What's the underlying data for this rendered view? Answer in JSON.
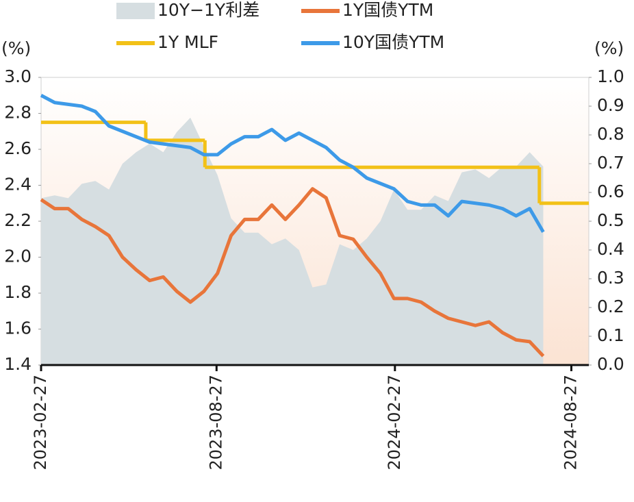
{
  "chart_data": {
    "type": "line",
    "y_unit": "(%)",
    "y2_unit": "(%)",
    "xlim": [
      "2023-02-27",
      "2024-09-14"
    ],
    "xticks": [
      "2023-02-27",
      "2023-08-27",
      "2024-02-27",
      "2024-08-27"
    ],
    "ylim": [
      1.4,
      3.0
    ],
    "yticks": [
      {
        "value": 1.4,
        "label": "1.4"
      },
      1.6,
      1.8,
      {
        "value": 2,
        "label": "2.0"
      },
      2.2,
      2.4,
      2.6,
      2.8,
      {
        "value": 3,
        "label": "3.0"
      }
    ],
    "y2lim": [
      0,
      1
    ],
    "y2ticks": [
      {
        "value": 0,
        "label": "0.0"
      },
      0.1,
      0.2,
      0.3,
      0.4,
      0.5,
      0.6,
      0.7,
      0.8,
      0.9,
      {
        "value": 1,
        "label": "1.0"
      }
    ],
    "x": [
      "2023-02-27",
      "2023-03-13",
      "2023-03-27",
      "2023-04-10",
      "2023-04-24",
      "2023-05-08",
      "2023-05-22",
      "2023-06-05",
      "2023-06-19",
      "2023-07-03",
      "2023-07-17",
      "2023-07-31",
      "2023-08-14",
      "2023-08-28",
      "2023-09-11",
      "2023-09-25",
      "2023-10-09",
      "2023-10-23",
      "2023-11-06",
      "2023-11-20",
      "2023-12-04",
      "2023-12-18",
      "2024-01-01",
      "2024-01-15",
      "2024-01-29",
      "2024-02-12",
      "2024-02-26",
      "2024-03-11",
      "2024-03-25",
      "2024-04-08",
      "2024-04-22",
      "2024-05-06",
      "2024-05-20",
      "2024-06-03",
      "2024-06-17",
      "2024-07-01",
      "2024-07-15",
      "2024-07-29"
    ],
    "series": [
      {
        "name": "10Y−1Y利差",
        "color": "#d6dee1",
        "kind": "area",
        "axis": "y2",
        "values": [
          0.58,
          0.59,
          0.58,
          0.63,
          0.64,
          0.61,
          0.7,
          0.74,
          0.77,
          0.74,
          0.81,
          0.86,
          0.76,
          0.66,
          0.51,
          0.46,
          0.46,
          0.42,
          0.44,
          0.4,
          0.27,
          0.28,
          0.42,
          0.4,
          0.44,
          0.5,
          0.61,
          0.54,
          0.54,
          0.59,
          0.57,
          0.67,
          0.68,
          0.65,
          0.69,
          0.69,
          0.74,
          0.69
        ]
      },
      {
        "name": "1Y国债YTM",
        "color": "#e8753a",
        "kind": "line",
        "values": [
          2.32,
          2.27,
          2.27,
          2.21,
          2.17,
          2.12,
          2.0,
          1.93,
          1.87,
          1.89,
          1.81,
          1.75,
          1.81,
          1.91,
          2.12,
          2.21,
          2.21,
          2.29,
          2.21,
          2.29,
          2.38,
          2.33,
          2.12,
          2.1,
          2.0,
          1.91,
          1.77,
          1.77,
          1.75,
          1.7,
          1.66,
          1.64,
          1.62,
          1.64,
          1.58,
          1.54,
          1.53,
          1.45
        ]
      },
      {
        "name": "1Y MLF",
        "color": "#f2c118",
        "kind": "step",
        "x": [
          "2023-02-27",
          "2023-06-15",
          "2023-08-15",
          "2024-07-25"
        ],
        "values": [
          2.75,
          2.65,
          2.5,
          2.3
        ]
      },
      {
        "name": "10Y国债YTM",
        "color": "#3d9ae8",
        "kind": "line",
        "values": [
          2.9,
          2.86,
          2.85,
          2.84,
          2.81,
          2.73,
          2.7,
          2.67,
          2.64,
          2.63,
          2.62,
          2.61,
          2.57,
          2.57,
          2.63,
          2.67,
          2.67,
          2.71,
          2.65,
          2.69,
          2.65,
          2.61,
          2.54,
          2.5,
          2.44,
          2.41,
          2.38,
          2.31,
          2.29,
          2.29,
          2.23,
          2.31,
          2.3,
          2.29,
          2.27,
          2.23,
          2.27,
          2.14
        ]
      }
    ]
  }
}
